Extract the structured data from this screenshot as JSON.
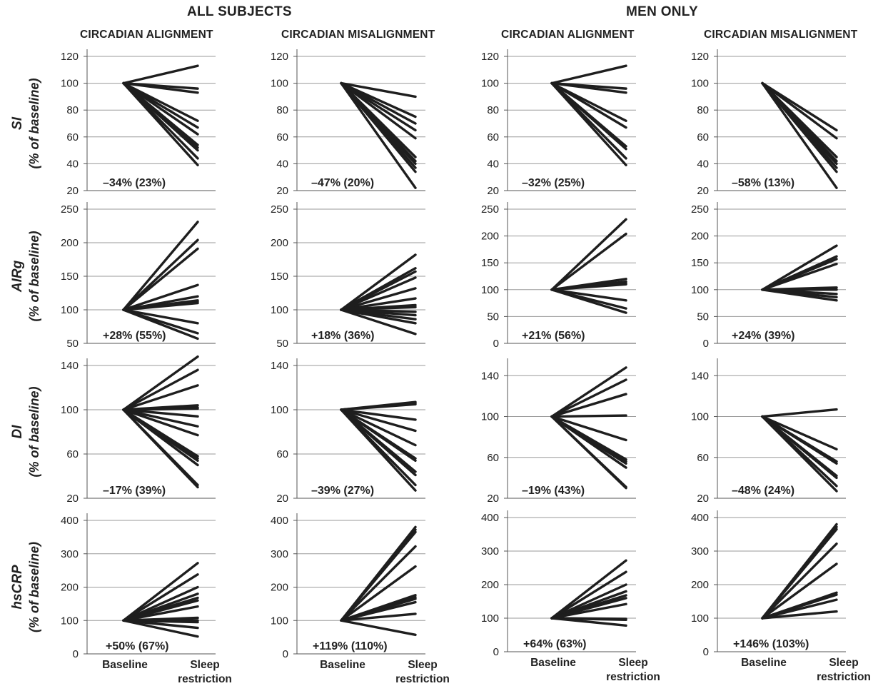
{
  "groups": [
    {
      "title": "ALL SUBJECTS"
    },
    {
      "title": "MEN ONLY"
    }
  ],
  "columns": [
    {
      "title": "CIRCADIAN ALIGNMENT"
    },
    {
      "title": "CIRCADIAN MISALIGNMENT"
    },
    {
      "title": "CIRCADIAN ALIGNMENT"
    },
    {
      "title": "CIRCADIAN MISALIGNMENT"
    }
  ],
  "rows": [
    {
      "ylabel": "SI",
      "ylabel_sub": "(% of baseline)"
    },
    {
      "ylabel": "AIRg",
      "ylabel_sub": "(% of baseline)"
    },
    {
      "ylabel": "DI",
      "ylabel_sub": "(% of baseline)"
    },
    {
      "ylabel": "hsCRP",
      "ylabel_sub": "(% of baseline)"
    }
  ],
  "x_ticks": [
    "Baseline",
    "Sleep restriction"
  ],
  "chart_data": [
    {
      "type": "line",
      "row": "SI",
      "group": "ALL SUBJECTS",
      "column": "CIRCADIAN ALIGNMENT",
      "ylabel": "SI (% of baseline)",
      "ylim": [
        20,
        120
      ],
      "yticks": [
        20,
        40,
        60,
        80,
        100,
        120
      ],
      "categories": [
        "Baseline",
        "Sleep restriction"
      ],
      "baseline": 100,
      "endpoints": [
        113,
        96,
        93,
        72,
        67,
        62,
        54,
        52,
        50,
        44,
        39
      ],
      "annotation": "–34% (23%)"
    },
    {
      "type": "line",
      "row": "SI",
      "group": "ALL SUBJECTS",
      "column": "CIRCADIAN MISALIGNMENT",
      "ylabel": "SI (% of baseline)",
      "ylim": [
        20,
        120
      ],
      "yticks": [
        20,
        40,
        60,
        80,
        100,
        120
      ],
      "categories": [
        "Baseline",
        "Sleep restriction"
      ],
      "baseline": 100,
      "endpoints": [
        90,
        75,
        70,
        65,
        59,
        45,
        42,
        40,
        37,
        34,
        22
      ],
      "annotation": "–47% (20%)"
    },
    {
      "type": "line",
      "row": "SI",
      "group": "MEN ONLY",
      "column": "CIRCADIAN ALIGNMENT",
      "ylabel": "SI (% of baseline)",
      "ylim": [
        20,
        120
      ],
      "yticks": [
        20,
        40,
        60,
        80,
        100,
        120
      ],
      "categories": [
        "Baseline",
        "Sleep restriction"
      ],
      "baseline": 100,
      "endpoints": [
        113,
        96,
        93,
        72,
        67,
        53,
        51,
        44,
        39
      ],
      "annotation": "–32% (25%)"
    },
    {
      "type": "line",
      "row": "SI",
      "group": "MEN ONLY",
      "column": "CIRCADIAN MISALIGNMENT",
      "ylabel": "SI (% of baseline)",
      "ylim": [
        20,
        120
      ],
      "yticks": [
        20,
        40,
        60,
        80,
        100,
        120
      ],
      "categories": [
        "Baseline",
        "Sleep restriction"
      ],
      "baseline": 100,
      "endpoints": [
        65,
        59,
        45,
        42,
        40,
        37,
        34,
        22
      ],
      "annotation": "–58% (13%)"
    },
    {
      "type": "line",
      "row": "AIRg",
      "group": "ALL SUBJECTS",
      "column": "CIRCADIAN ALIGNMENT",
      "ylabel": "AIRg (% of baseline)",
      "ylim": [
        50,
        250
      ],
      "yticks": [
        50,
        100,
        150,
        200,
        250
      ],
      "categories": [
        "Baseline",
        "Sleep restriction"
      ],
      "baseline": 100,
      "endpoints": [
        231,
        204,
        191,
        137,
        120,
        114,
        112,
        110,
        80,
        65,
        57
      ],
      "annotation": "+28% (55%)"
    },
    {
      "type": "line",
      "row": "AIRg",
      "group": "ALL SUBJECTS",
      "column": "CIRCADIAN MISALIGNMENT",
      "ylabel": "AIRg (% of baseline)",
      "ylim": [
        50,
        250
      ],
      "yticks": [
        50,
        100,
        150,
        200,
        250
      ],
      "categories": [
        "Baseline",
        "Sleep restriction"
      ],
      "baseline": 100,
      "endpoints": [
        182,
        162,
        157,
        148,
        132,
        117,
        107,
        104,
        97,
        92,
        86,
        80,
        64
      ],
      "annotation": "+18% (36%)"
    },
    {
      "type": "line",
      "row": "AIRg",
      "group": "MEN ONLY",
      "column": "CIRCADIAN ALIGNMENT",
      "ylabel": "AIRg (% of baseline)",
      "ylim": [
        0,
        250
      ],
      "yticks": [
        0,
        50,
        100,
        150,
        200,
        250
      ],
      "categories": [
        "Baseline",
        "Sleep restriction"
      ],
      "baseline": 100,
      "endpoints": [
        231,
        204,
        120,
        115,
        112,
        110,
        80,
        65,
        57
      ],
      "annotation": "+21% (56%)"
    },
    {
      "type": "line",
      "row": "AIRg",
      "group": "MEN ONLY",
      "column": "CIRCADIAN MISALIGNMENT",
      "ylabel": "AIRg (% of baseline)",
      "ylim": [
        0,
        250
      ],
      "yticks": [
        0,
        50,
        100,
        150,
        200,
        250
      ],
      "categories": [
        "Baseline",
        "Sleep restriction"
      ],
      "baseline": 100,
      "endpoints": [
        182,
        162,
        157,
        148,
        104,
        100,
        92,
        86,
        80
      ],
      "annotation": "+24% (39%)"
    },
    {
      "type": "line",
      "row": "DI",
      "group": "ALL SUBJECTS",
      "column": "CIRCADIAN ALIGNMENT",
      "ylabel": "DI (% of baseline)",
      "ylim": [
        20,
        140
      ],
      "yticks": [
        20,
        60,
        100,
        140
      ],
      "categories": [
        "Baseline",
        "Sleep restriction"
      ],
      "baseline": 100,
      "endpoints": [
        148,
        136,
        122,
        104,
        102,
        101,
        94,
        85,
        77,
        58,
        56,
        54,
        50,
        32,
        30
      ],
      "annotation": "–17% (39%)"
    },
    {
      "type": "line",
      "row": "DI",
      "group": "ALL SUBJECTS",
      "column": "CIRCADIAN MISALIGNMENT",
      "ylabel": "DI (% of baseline)",
      "ylim": [
        20,
        140
      ],
      "yticks": [
        20,
        60,
        100,
        140
      ],
      "categories": [
        "Baseline",
        "Sleep restriction"
      ],
      "baseline": 100,
      "endpoints": [
        107,
        106,
        105,
        91,
        81,
        68,
        56,
        54,
        44,
        41,
        32,
        27
      ],
      "annotation": "–39% (27%)"
    },
    {
      "type": "line",
      "row": "DI",
      "group": "MEN ONLY",
      "column": "CIRCADIAN ALIGNMENT",
      "ylabel": "DI (% of baseline)",
      "ylim": [
        20,
        150
      ],
      "yticks": [
        20,
        60,
        100,
        140
      ],
      "categories": [
        "Baseline",
        "Sleep restriction"
      ],
      "baseline": 100,
      "endpoints": [
        148,
        136,
        122,
        101,
        77,
        58,
        56,
        54,
        50,
        31,
        30
      ],
      "annotation": "–19% (43%)"
    },
    {
      "type": "line",
      "row": "DI",
      "group": "MEN ONLY",
      "column": "CIRCADIAN MISALIGNMENT",
      "ylabel": "DI (% of baseline)",
      "ylim": [
        20,
        150
      ],
      "yticks": [
        20,
        60,
        100,
        140
      ],
      "categories": [
        "Baseline",
        "Sleep restriction"
      ],
      "baseline": 100,
      "endpoints": [
        107,
        68,
        56,
        54,
        42,
        40,
        32,
        27
      ],
      "annotation": "–48% (24%)"
    },
    {
      "type": "line",
      "row": "hsCRP",
      "group": "ALL SUBJECTS",
      "column": "CIRCADIAN ALIGNMENT",
      "ylabel": "hsCRP (% of baseline)",
      "ylim": [
        0,
        400
      ],
      "yticks": [
        0,
        100,
        200,
        300,
        400
      ],
      "categories": [
        "Baseline",
        "Sleep restriction"
      ],
      "baseline": 100,
      "endpoints": [
        272,
        238,
        200,
        180,
        168,
        160,
        142,
        108,
        100,
        95,
        78,
        52
      ],
      "annotation": "+50% (67%)"
    },
    {
      "type": "line",
      "row": "hsCRP",
      "group": "ALL SUBJECTS",
      "column": "CIRCADIAN MISALIGNMENT",
      "ylabel": "hsCRP (% of baseline)",
      "ylim": [
        0,
        400
      ],
      "yticks": [
        0,
        100,
        200,
        300,
        400
      ],
      "categories": [
        "Baseline",
        "Sleep restriction"
      ],
      "baseline": 100,
      "endpoints": [
        380,
        372,
        365,
        322,
        262,
        176,
        170,
        165,
        155,
        120,
        57
      ],
      "annotation": "+119% (110%)"
    },
    {
      "type": "line",
      "row": "hsCRP",
      "group": "MEN ONLY",
      "column": "CIRCADIAN ALIGNMENT",
      "ylabel": "hsCRP (% of baseline)",
      "ylim": [
        0,
        400
      ],
      "yticks": [
        0,
        100,
        200,
        300,
        400
      ],
      "categories": [
        "Baseline",
        "Sleep restriction"
      ],
      "baseline": 100,
      "endpoints": [
        272,
        238,
        200,
        180,
        168,
        160,
        142,
        98,
        95,
        78
      ],
      "annotation": "+64% (63%)"
    },
    {
      "type": "line",
      "row": "hsCRP",
      "group": "MEN ONLY",
      "column": "CIRCADIAN MISALIGNMENT",
      "ylabel": "hsCRP (% of baseline)",
      "ylim": [
        0,
        400
      ],
      "yticks": [
        0,
        100,
        200,
        300,
        400
      ],
      "categories": [
        "Baseline",
        "Sleep restriction"
      ],
      "baseline": 100,
      "endpoints": [
        380,
        372,
        365,
        322,
        262,
        176,
        170,
        155,
        120
      ],
      "annotation": "+146% (103%)"
    }
  ]
}
